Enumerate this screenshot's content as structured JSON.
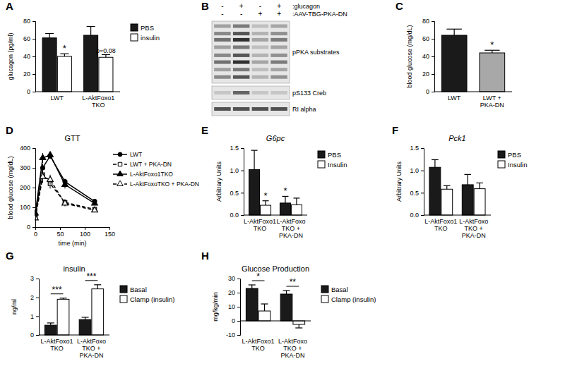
{
  "chart_data": [
    {
      "type": "bar",
      "panel_label": "A",
      "y_label": "glucagon (pg/ml)",
      "categories": [
        "LWT",
        "L-AktFoxo1 TKO"
      ],
      "series": [
        {
          "name": "PBS",
          "color": "#1a1a1a",
          "values": [
            61,
            64
          ],
          "errors": [
            5,
            10
          ]
        },
        {
          "name": "insulin",
          "color": "#ffffff",
          "values": [
            40,
            39
          ],
          "errors": [
            3,
            3
          ]
        }
      ],
      "ylim": [
        0,
        80
      ],
      "yticks": [
        0,
        20,
        40,
        60,
        80
      ],
      "legend": "top-right",
      "annotations": [
        {
          "text": "*",
          "category": 0,
          "series": 1
        },
        {
          "text": "p=0.08",
          "category": 1,
          "series": 1
        }
      ]
    },
    {
      "type": "blot",
      "panel_label": "B",
      "rows": [
        {
          "label": ":glucagon",
          "signs": [
            "-",
            "+",
            "-",
            "+"
          ]
        },
        {
          "label": ":AAV-TBG-PKA-DN",
          "signs": [
            "-",
            "-",
            "+",
            "+"
          ]
        }
      ],
      "bands": [
        "pPKA substrates",
        "pS133 Creb",
        "RI alpha"
      ]
    },
    {
      "type": "bar",
      "panel_label": "C",
      "y_label": "blood glucose (mg/dL)",
      "categories": [
        "LWT",
        "LWT + PKA-DN"
      ],
      "values": [
        64,
        44
      ],
      "errors": [
        7,
        3
      ],
      "colors": [
        "#1a1a1a",
        "#a8a8a8"
      ],
      "ylim": [
        0,
        80
      ],
      "yticks": [
        0,
        20,
        40,
        60,
        80
      ],
      "annotations": [
        {
          "text": "*",
          "category": 1,
          "series": 0
        }
      ]
    },
    {
      "type": "line",
      "panel_label": "D",
      "title": "GTT",
      "x_label": "time (min)",
      "y_label": "blood glucose (mg/dL)",
      "x": [
        0,
        15,
        30,
        60,
        120
      ],
      "series": [
        {
          "name": "LWT",
          "color": "#000000",
          "marker": "circle",
          "line_style": "solid",
          "values": [
            60,
            300,
            360,
            230,
            130
          ],
          "errors": [
            8,
            20,
            15,
            15,
            10
          ]
        },
        {
          "name": "LWT + PKA-DN",
          "color": "#000000",
          "marker": "square-open",
          "line_style": "dashed",
          "values": [
            50,
            265,
            220,
            125,
            90
          ],
          "errors": [
            8,
            25,
            25,
            15,
            10
          ]
        },
        {
          "name": "L-AktFoxo1TKO",
          "color": "#000000",
          "marker": "triangle",
          "line_style": "solid",
          "values": [
            70,
            350,
            365,
            215,
            120
          ],
          "errors": [
            10,
            25,
            15,
            20,
            10
          ]
        },
        {
          "name": "L-AktFoxoTKO + PKA-DN",
          "color": "#000000",
          "marker": "triangle-open",
          "line_style": "dashed",
          "values": [
            45,
            255,
            240,
            120,
            85
          ],
          "errors": [
            8,
            30,
            25,
            15,
            10
          ]
        }
      ],
      "xlim": [
        0,
        150
      ],
      "xticks": [
        0,
        50,
        100,
        150
      ],
      "ylim": [
        0,
        400
      ],
      "yticks": [
        0,
        100,
        200,
        300,
        400
      ],
      "legend": "top-right"
    },
    {
      "type": "bar",
      "panel_label": "E",
      "title": "G6pc",
      "y_label": "Arbitrary Units",
      "categories": [
        "L-AktFoxo1 TKO",
        "L-AktFoxo TKO + PKA-DN"
      ],
      "series": [
        {
          "name": "PBS",
          "color": "#1a1a1a",
          "values": [
            1.02,
            0.27
          ],
          "errors": [
            0.43,
            0.15
          ]
        },
        {
          "name": "Insulin",
          "color": "#ffffff",
          "values": [
            0.22,
            0.23
          ],
          "errors": [
            0.1,
            0.15
          ]
        }
      ],
      "ylim": [
        0,
        1.5
      ],
      "yticks": [
        {
          "value": 0,
          "label": "0.0"
        },
        0.5,
        {
          "value": 1,
          "label": "1.0"
        },
        1.5
      ],
      "legend": "top-right",
      "annotations": [
        {
          "text": "*",
          "category": 0,
          "series": 1
        },
        {
          "text": "*",
          "category": 1,
          "series": 0
        }
      ]
    },
    {
      "type": "bar",
      "panel_label": "F",
      "title": "Pck1",
      "y_label": "Arbitrary Units",
      "categories": [
        "L-AktFoxo1 TKO",
        "L-AktFoxo TKO + PKA-DN"
      ],
      "series": [
        {
          "name": "PBS",
          "color": "#1a1a1a",
          "values": [
            1.07,
            0.68
          ],
          "errors": [
            0.17,
            0.23
          ]
        },
        {
          "name": "Insulin",
          "color": "#ffffff",
          "values": [
            0.58,
            0.59
          ],
          "errors": [
            0.08,
            0.13
          ]
        }
      ],
      "ylim": [
        0,
        1.5
      ],
      "yticks": [
        {
          "value": 0,
          "label": "0.0"
        },
        0.5,
        {
          "value": 1,
          "label": "1.0"
        },
        1.5
      ],
      "legend": "top-right"
    },
    {
      "type": "bar",
      "panel_label": "G",
      "title": "insulin",
      "y_label": "ng/ml",
      "categories": [
        "L-AktFoxo1 TKO",
        "L-AktFoxo TKO + PKA-DN"
      ],
      "series": [
        {
          "name": "Basal",
          "color": "#1a1a1a",
          "values": [
            0.52,
            0.82
          ],
          "errors": [
            0.12,
            0.12
          ]
        },
        {
          "name": "Clamp (insulin)",
          "color": "#ffffff",
          "values": [
            1.9,
            2.45
          ],
          "errors": [
            0.06,
            0.22
          ]
        }
      ],
      "ylim": [
        0,
        3
      ],
      "yticks": [
        0,
        1,
        2,
        3
      ],
      "legend": "top-right",
      "annotations": [
        {
          "text": "***",
          "category": 0
        },
        {
          "text": "***",
          "category": 1
        }
      ]
    },
    {
      "type": "bar",
      "panel_label": "H",
      "title": "Glucose Production",
      "y_label": "mg/kg/min",
      "categories": [
        "L-AktFoxo1 TKO",
        "L-AktFoxo TKO + PKA-DN"
      ],
      "series": [
        {
          "name": "Basal",
          "color": "#1a1a1a",
          "values": [
            23,
            19
          ],
          "errors": [
            2.5,
            2.5
          ]
        },
        {
          "name": "Clamp (insulin)",
          "color": "#ffffff",
          "values": [
            7,
            -2.5
          ],
          "errors": [
            5,
            2.5
          ]
        }
      ],
      "ylim": [
        -10,
        30
      ],
      "yticks": [
        -10,
        0,
        10,
        20,
        30
      ],
      "legend": "top-right",
      "annotations": [
        {
          "text": "*",
          "category": 0
        },
        {
          "text": "**",
          "category": 1
        }
      ]
    }
  ]
}
